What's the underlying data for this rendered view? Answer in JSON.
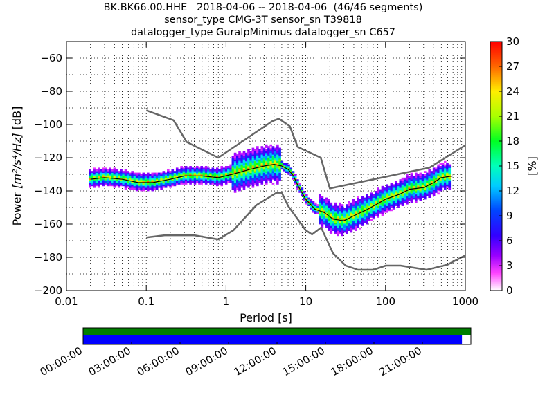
{
  "title": {
    "line1": "BK.BK66.00.HHE   2018-04-06 -- 2018-04-06  (46/46 segments)",
    "line2": "sensor_type CMG-3T sensor_sn T39818",
    "line3": "datalogger_type GuralpMinimus datalogger_sn C657"
  },
  "colors": {
    "model_curves": "#666666",
    "mode_curve": "#000000",
    "coverage_top": "#007f00",
    "coverage_bottom": "#0000ff"
  },
  "chart_data": [
    {
      "type": "heatmap",
      "xlabel": "Period [s]",
      "ylabel_prefix": "Power ",
      "ylabel_units": "[m²/s⁴/Hz]",
      "ylabel_suffix": " [dB]",
      "xscale": "log",
      "xlim": [
        0.01,
        1000
      ],
      "ylim": [
        -200,
        -50
      ],
      "xticks": [
        "0.01",
        "0.1",
        "1",
        "10",
        "100",
        "1000"
      ],
      "yticks": [
        "−60",
        "−80",
        "−100",
        "−120",
        "−140",
        "−160",
        "−180",
        "−200"
      ],
      "colorbar": {
        "label": "[%]",
        "range": [
          0,
          30
        ],
        "ticks": [
          "0",
          "3",
          "6",
          "9",
          "12",
          "15",
          "18",
          "21",
          "24",
          "27",
          "30"
        ]
      },
      "grid": "dotted",
      "ppsd_mode_curve": {
        "period": [
          0.02,
          0.03,
          0.05,
          0.08,
          0.12,
          0.2,
          0.3,
          0.5,
          0.8,
          1.2,
          2,
          3,
          4,
          5,
          6,
          7,
          8,
          10,
          13,
          17,
          22,
          30,
          40,
          60,
          100,
          150,
          200,
          300,
          400,
          500,
          700
        ],
        "power": [
          -133,
          -132,
          -133,
          -135,
          -135,
          -133,
          -131,
          -131,
          -132,
          -130,
          -127,
          -125,
          -124,
          -125,
          -127,
          -131,
          -137,
          -145,
          -151,
          -153,
          -157,
          -158,
          -155,
          -151,
          -145,
          -142,
          -139,
          -138,
          -135,
          -132,
          -131
        ]
      },
      "nhnm": {
        "period": [
          0.1,
          0.22,
          0.32,
          0.8,
          3.8,
          4.6,
          6.3,
          7.9,
          15.4,
          20,
          354.8,
          1000
        ],
        "power": [
          -91.5,
          -97.4,
          -110.5,
          -120,
          -98,
          -96.5,
          -101,
          -113.5,
          -120,
          -138.5,
          -126,
          -112.5
        ]
      },
      "nlnm": {
        "period": [
          0.1,
          0.17,
          0.4,
          0.8,
          1.24,
          2.4,
          4.3,
          5,
          6,
          10,
          12,
          15.6,
          21.9,
          31.6,
          45,
          70,
          101,
          154,
          328,
          600,
          1000
        ],
        "power": [
          -168,
          -166.7,
          -166.7,
          -169.2,
          -163.7,
          -148.6,
          -141.1,
          -141.1,
          -149,
          -163.8,
          -166.2,
          -162.1,
          -177.5,
          -185,
          -187.5,
          -187.5,
          -185,
          -185,
          -187.5,
          -184.4,
          -178.8
        ]
      }
    },
    {
      "type": "bar",
      "xticks": [
        "00:00:00",
        "03:00:00",
        "06:00:00",
        "09:00:00",
        "12:00:00",
        "15:00:00",
        "18:00:00",
        "21:00:00"
      ],
      "coverage_fraction": 0.977
    }
  ]
}
